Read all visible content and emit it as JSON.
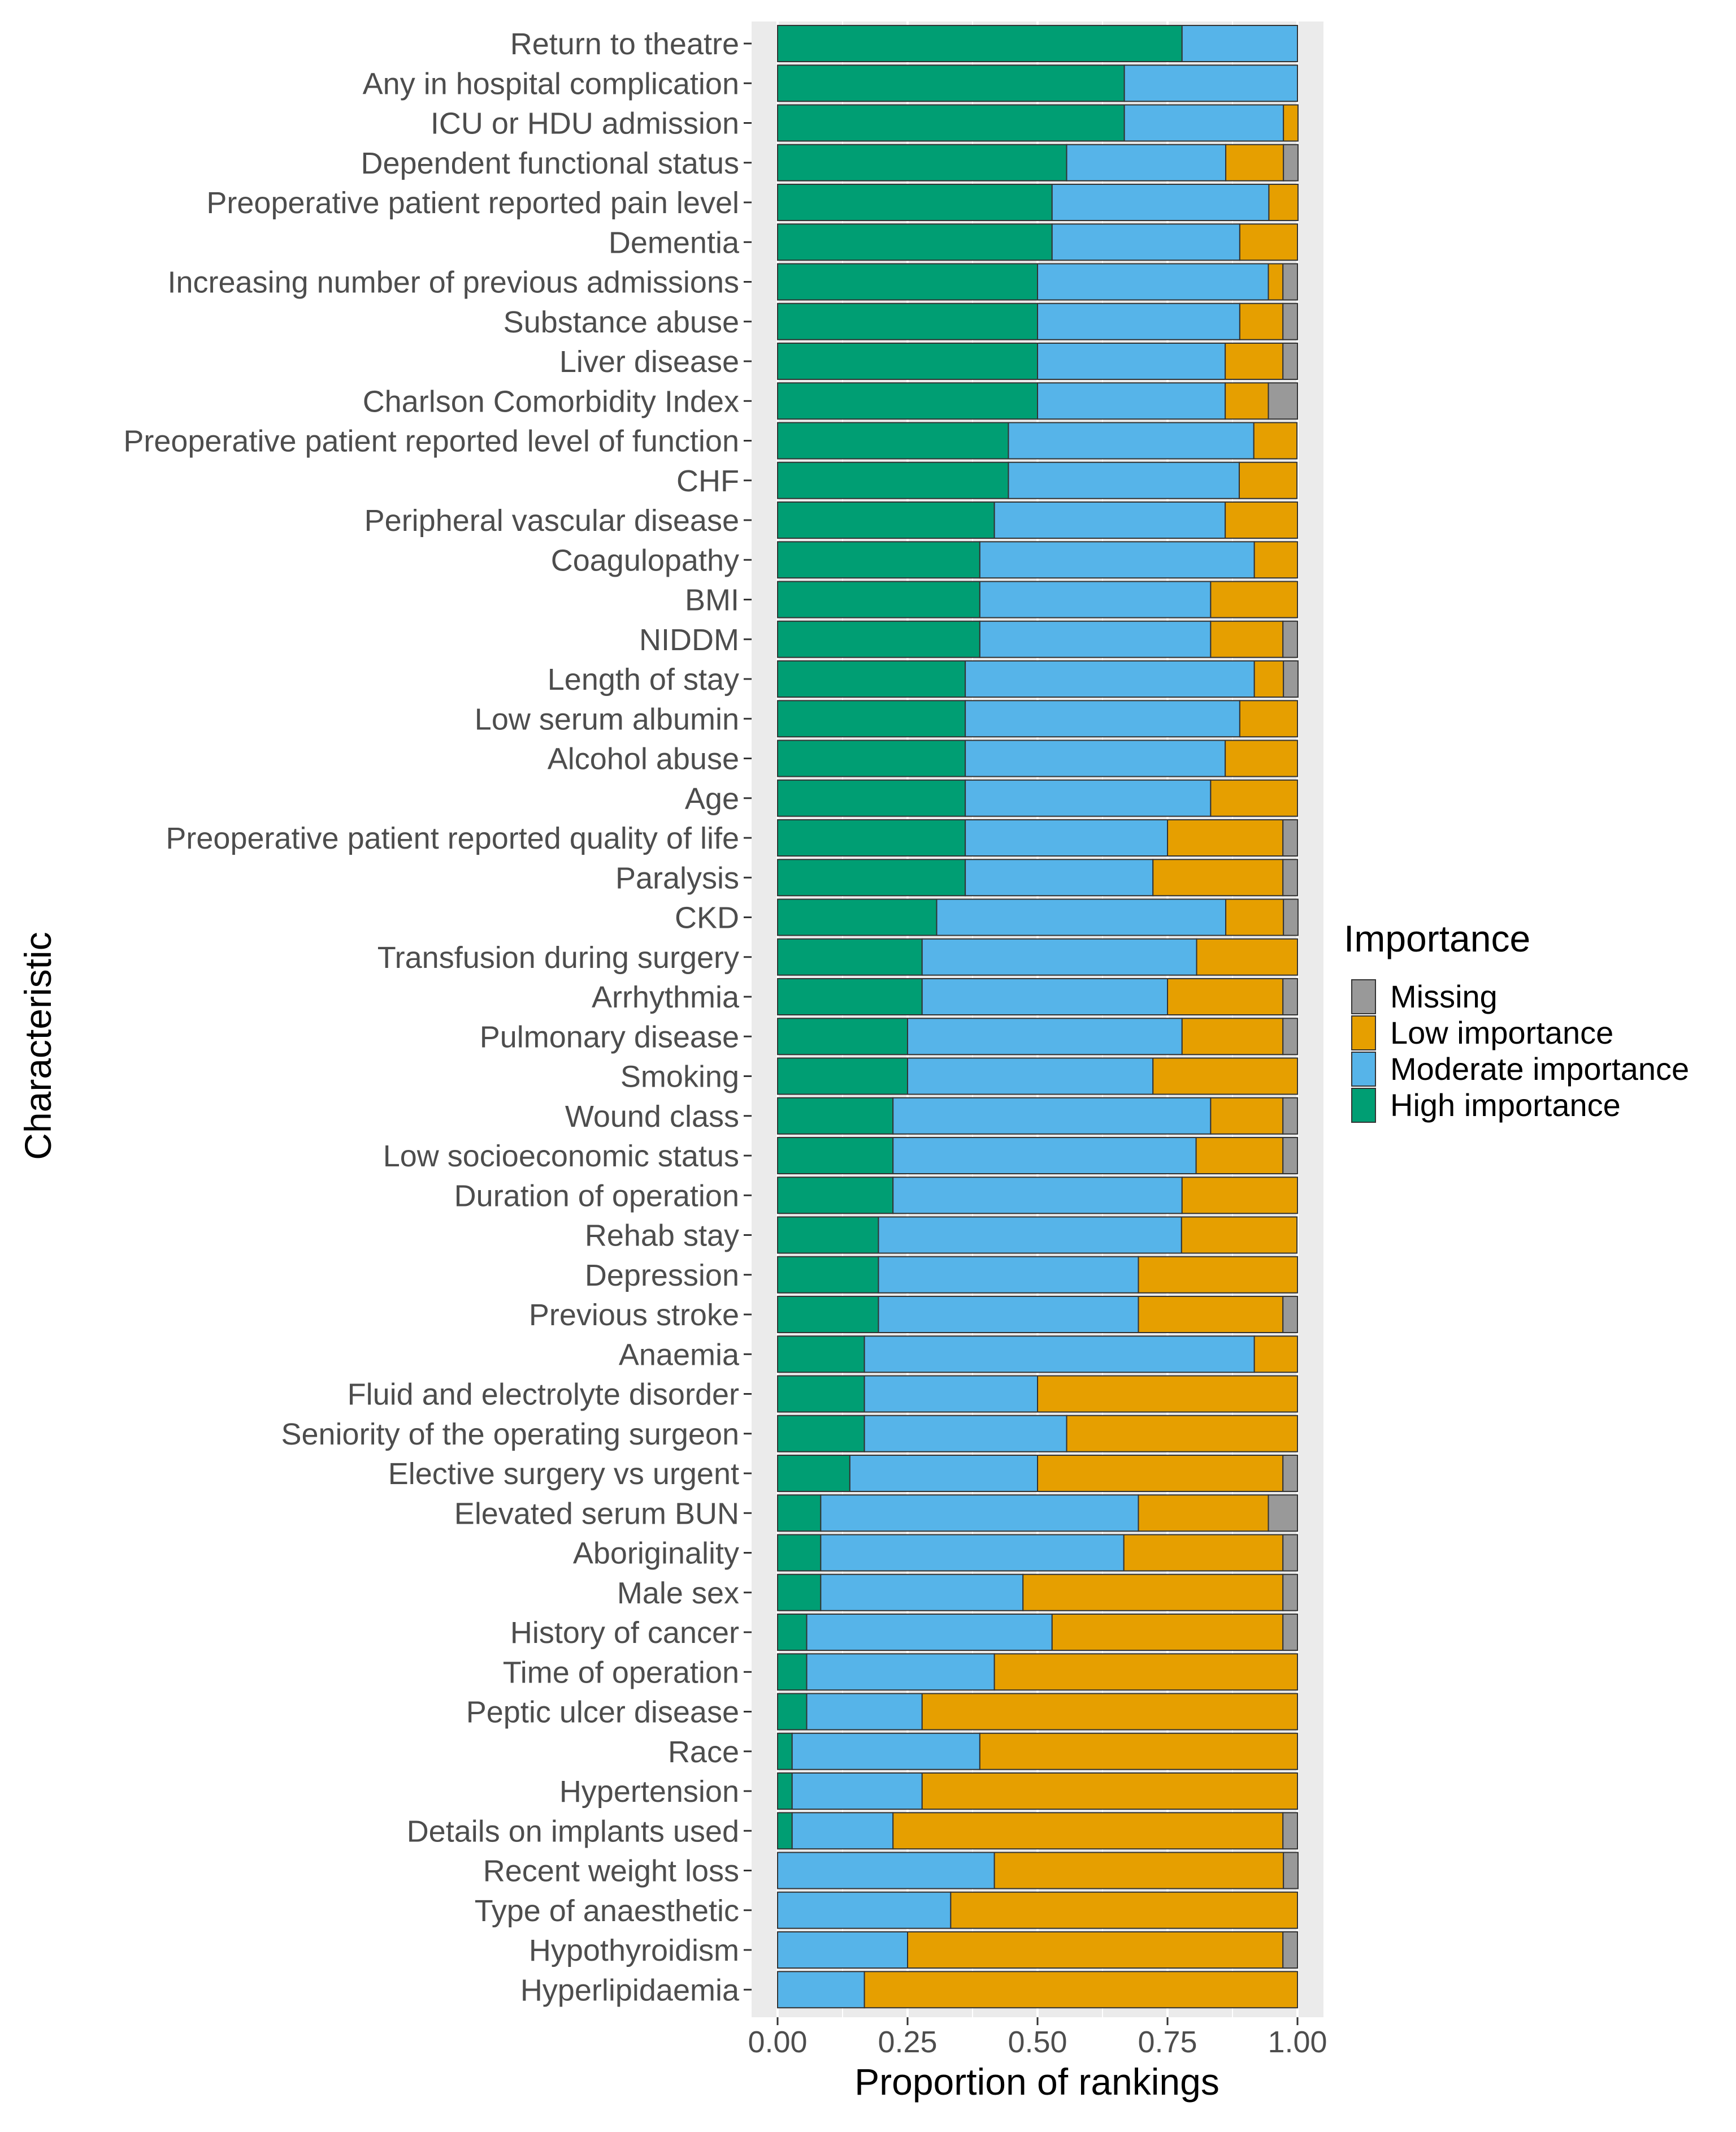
{
  "chart_data": {
    "type": "bar",
    "orientation": "horizontal",
    "stacked": true,
    "xlabel": "Proportion of rankings",
    "ylabel": "Characteristic",
    "xlim": [
      0,
      1
    ],
    "xticks": [
      "0.00",
      "0.25",
      "0.50",
      "0.75",
      "1.00"
    ],
    "legend": {
      "title": "Importance",
      "position": "right",
      "items": [
        {
          "label": "Missing",
          "color": "#999999"
        },
        {
          "label": "Low importance",
          "color": "#E69F00"
        },
        {
          "label": "Moderate importance",
          "color": "#56B4E9"
        },
        {
          "label": "High importance",
          "color": "#009E73"
        }
      ]
    },
    "colors": {
      "High importance": "#009E73",
      "Moderate importance": "#56B4E9",
      "Low importance": "#E69F00",
      "Missing": "#999999",
      "panel": "#EBEBEB",
      "grid": "#FFFFFF"
    },
    "categories": [
      "Return to theatre",
      "Any in hospital complication",
      "ICU or HDU admission",
      "Dependent functional status",
      "Preoperative patient reported pain level",
      "Dementia",
      "Increasing number of previous admissions",
      "Substance abuse",
      "Liver disease",
      "Charlson Comorbidity Index",
      "Preoperative patient reported level of function",
      "CHF",
      "Peripheral vascular disease",
      "Coagulopathy",
      "BMI",
      "NIDDM",
      "Length of stay",
      "Low serum albumin",
      "Alcohol abuse",
      "Age",
      "Preoperative patient reported quality of life",
      "Paralysis",
      "CKD",
      "Transfusion during surgery",
      "Arrhythmia",
      "Pulmonary disease",
      "Smoking",
      "Wound class",
      "Low socioeconomic status",
      "Duration of operation",
      "Rehab stay",
      "Depression",
      "Previous stroke",
      "Anaemia",
      "Fluid and electrolyte disorder",
      "Seniority of the operating surgeon",
      "Elective surgery vs urgent",
      "Elevated serum BUN",
      "Aboriginality",
      "Male sex",
      "History of cancer",
      "Time of operation",
      "Peptic ulcer disease",
      "Race",
      "Hypertension",
      "Details on implants used",
      "Recent weight loss",
      "Type of anaesthetic",
      "Hypothyroidism",
      "Hyperlipidaemia"
    ],
    "series": [
      {
        "name": "High importance",
        "values": [
          0.778,
          0.667,
          0.667,
          0.556,
          0.528,
          0.528,
          0.5,
          0.5,
          0.5,
          0.5,
          0.444,
          0.444,
          0.417,
          0.389,
          0.389,
          0.389,
          0.361,
          0.361,
          0.361,
          0.361,
          0.361,
          0.361,
          0.306,
          0.278,
          0.278,
          0.25,
          0.25,
          0.222,
          0.222,
          0.222,
          0.194,
          0.194,
          0.194,
          0.167,
          0.167,
          0.167,
          0.139,
          0.083,
          0.083,
          0.083,
          0.056,
          0.056,
          0.056,
          0.028,
          0.028,
          0.028,
          0.0,
          0.0,
          0.0,
          0.0
        ]
      },
      {
        "name": "Moderate importance",
        "values": [
          0.222,
          0.333,
          0.306,
          0.306,
          0.417,
          0.361,
          0.444,
          0.389,
          0.361,
          0.361,
          0.472,
          0.444,
          0.444,
          0.528,
          0.444,
          0.444,
          0.556,
          0.528,
          0.5,
          0.472,
          0.389,
          0.361,
          0.556,
          0.528,
          0.472,
          0.528,
          0.472,
          0.611,
          0.583,
          0.556,
          0.583,
          0.5,
          0.5,
          0.75,
          0.333,
          0.389,
          0.361,
          0.611,
          0.583,
          0.389,
          0.472,
          0.361,
          0.222,
          0.361,
          0.25,
          0.194,
          0.417,
          0.333,
          0.25,
          0.167
        ]
      },
      {
        "name": "Low importance",
        "values": [
          0.0,
          0.0,
          0.028,
          0.111,
          0.056,
          0.111,
          0.028,
          0.083,
          0.111,
          0.083,
          0.083,
          0.111,
          0.139,
          0.083,
          0.167,
          0.139,
          0.056,
          0.111,
          0.139,
          0.167,
          0.222,
          0.25,
          0.111,
          0.194,
          0.222,
          0.194,
          0.278,
          0.139,
          0.167,
          0.222,
          0.222,
          0.306,
          0.278,
          0.083,
          0.5,
          0.444,
          0.472,
          0.25,
          0.306,
          0.5,
          0.444,
          0.583,
          0.722,
          0.611,
          0.722,
          0.75,
          0.556,
          0.667,
          0.722,
          0.833
        ]
      },
      {
        "name": "Missing",
        "values": [
          0.0,
          0.0,
          0.0,
          0.028,
          0.0,
          0.0,
          0.028,
          0.028,
          0.028,
          0.056,
          0.0,
          0.0,
          0.0,
          0.0,
          0.0,
          0.028,
          0.028,
          0.0,
          0.0,
          0.0,
          0.028,
          0.028,
          0.028,
          0.0,
          0.028,
          0.028,
          0.0,
          0.028,
          0.028,
          0.0,
          0.0,
          0.0,
          0.028,
          0.0,
          0.0,
          0.0,
          0.028,
          0.056,
          0.028,
          0.028,
          0.028,
          0.0,
          0.0,
          0.0,
          0.0,
          0.028,
          0.028,
          0.0,
          0.028,
          0.0
        ]
      }
    ]
  }
}
